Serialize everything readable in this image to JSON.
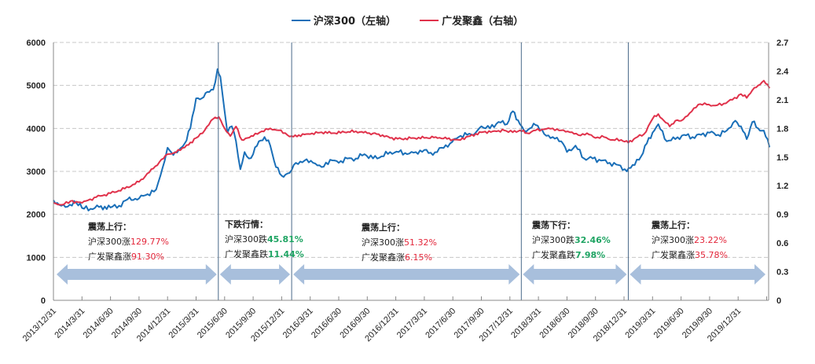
{
  "legend": {
    "items": [
      {
        "label": "沪深300（左轴）",
        "color": "#1a6fb8"
      },
      {
        "label": "广发聚鑫（右轴）",
        "color": "#e0324b"
      }
    ]
  },
  "colors": {
    "hs300": "#1a6fb8",
    "fund": "#e0324b",
    "arrow": "#a8bfdc",
    "divider": "#4a6a8a",
    "grid": "#c8c8c8",
    "up": "#e3263a",
    "down": "#1fa463"
  },
  "annotations": [
    {
      "title": "震荡上行：",
      "line1_prefix": "沪深300涨",
      "line1_value": "129.77%",
      "line1_dir": "up",
      "line2_prefix": "广发聚鑫涨",
      "line2_value": "91.30%",
      "line2_dir": "up"
    },
    {
      "title": "下跌行情：",
      "line1_prefix": "沪深300跌",
      "line1_value": "45.81%",
      "line1_dir": "down",
      "line2_prefix": "广发聚鑫跌",
      "line2_value": "11.44%",
      "line2_dir": "down"
    },
    {
      "title": "震荡上行：",
      "line1_prefix": "沪深300涨",
      "line1_value": "51.32%",
      "line1_dir": "up",
      "line2_prefix": "广发聚鑫涨",
      "line2_value": "6.15%",
      "line2_dir": "up"
    },
    {
      "title": "震荡下行：",
      "line1_prefix": "沪深300跌",
      "line1_value": "32.46%",
      "line1_dir": "down",
      "line2_prefix": "广发聚鑫跌",
      "line2_value": "7.98%",
      "line2_dir": "down"
    },
    {
      "title": "震荡上行：",
      "line1_prefix": "沪深300涨",
      "line1_value": "23.22%",
      "line1_dir": "up",
      "line2_prefix": "广发聚鑫涨",
      "line2_value": "35.78%",
      "line2_dir": "up"
    }
  ],
  "chart_data": {
    "type": "line",
    "title": "",
    "legend_position": "top",
    "grid": true,
    "x_tick_labels": [
      "2013/12/31",
      "2014/3/31",
      "2014/6/30",
      "2014/9/30",
      "2014/12/31",
      "2015/3/31",
      "2015/6/30",
      "2015/9/30",
      "2015/12/31",
      "2016/3/31",
      "2016/6/30",
      "2016/9/30",
      "2016/12/31",
      "2017/3/31",
      "2017/6/30",
      "2017/9/30",
      "2017/12/31",
      "2018/3/31",
      "2018/6/30",
      "2018/9/30",
      "2018/12/31",
      "2019/3/31",
      "2019/6/30",
      "2019/9/30",
      "2019/12/31"
    ],
    "y_left": {
      "label": "沪深300",
      "ticks": [
        0,
        1000,
        2000,
        3000,
        4000,
        5000,
        6000
      ],
      "range": [
        0,
        6000
      ]
    },
    "y_right": {
      "label": "广发聚鑫",
      "ticks": [
        "0",
        "0.3",
        "0.6",
        "0.9",
        "1.2",
        "1.5",
        "1.8",
        "2.1",
        "2.4",
        "2.7"
      ],
      "range": [
        0,
        2.7
      ]
    },
    "x_range_quarters": [
      0,
      25.1
    ],
    "period_dividers_quarters": [
      5.78,
      8.35,
      16.4,
      20.15
    ],
    "series": [
      {
        "name": "沪深300（左轴）",
        "axis": "left",
        "color": "#1a6fb8",
        "x_quarters": [
          0,
          0.2,
          0.5,
          0.8,
          1.0,
          1.3,
          1.6,
          2.0,
          2.3,
          2.6,
          3.0,
          3.3,
          3.6,
          3.9,
          4.0,
          4.2,
          4.4,
          4.6,
          4.8,
          5.0,
          5.2,
          5.4,
          5.6,
          5.75,
          5.85,
          6.0,
          6.1,
          6.25,
          6.4,
          6.55,
          6.7,
          6.85,
          7.0,
          7.2,
          7.4,
          7.6,
          7.8,
          8.0,
          8.2,
          8.35,
          8.5,
          8.8,
          9.1,
          9.4,
          9.7,
          10.0,
          10.3,
          10.6,
          10.9,
          11.2,
          11.5,
          11.8,
          12.1,
          12.4,
          12.7,
          13.0,
          13.3,
          13.6,
          13.9,
          14.2,
          14.5,
          14.8,
          15.0,
          15.3,
          15.6,
          15.9,
          16.1,
          16.35,
          16.5,
          16.7,
          16.9,
          17.2,
          17.5,
          17.8,
          18.0,
          18.3,
          18.6,
          18.9,
          19.2,
          19.5,
          19.8,
          20.1,
          20.3,
          20.6,
          20.8,
          21.0,
          21.2,
          21.5,
          21.8,
          22.1,
          22.4,
          22.7,
          23.0,
          23.3,
          23.6,
          23.9,
          24.1,
          24.3,
          24.5,
          24.7,
          24.9,
          25.1
        ],
        "values": [
          2330,
          2220,
          2180,
          2270,
          2150,
          2130,
          2170,
          2160,
          2200,
          2350,
          2370,
          2470,
          2580,
          3250,
          3550,
          3380,
          3500,
          3650,
          4000,
          4700,
          4700,
          4850,
          4900,
          5380,
          5200,
          4400,
          3900,
          4050,
          3700,
          3050,
          3450,
          3300,
          3400,
          3700,
          3800,
          3600,
          3100,
          2900,
          2950,
          3030,
          3200,
          3250,
          3200,
          3100,
          3270,
          3200,
          3300,
          3300,
          3400,
          3300,
          3350,
          3450,
          3450,
          3400,
          3450,
          3500,
          3380,
          3550,
          3650,
          3800,
          3850,
          3900,
          4050,
          4000,
          4150,
          4100,
          4400,
          4100,
          3950,
          4000,
          4080,
          3870,
          3800,
          3700,
          3450,
          3600,
          3300,
          3300,
          3250,
          3200,
          3150,
          3000,
          3150,
          3350,
          3650,
          3900,
          4100,
          3700,
          3750,
          3850,
          3800,
          3850,
          3900,
          3850,
          3950,
          4180,
          4050,
          3750,
          4150,
          4000,
          3950,
          3560
        ]
      },
      {
        "name": "广发聚鑫（右轴）",
        "axis": "right",
        "color": "#e0324b",
        "x_quarters": [
          0,
          0.3,
          0.6,
          1.0,
          1.5,
          2.0,
          2.5,
          3.0,
          3.5,
          4.0,
          4.3,
          4.6,
          5.0,
          5.3,
          5.6,
          5.8,
          6.0,
          6.2,
          6.4,
          6.6,
          6.8,
          7.0,
          7.3,
          7.6,
          7.9,
          8.2,
          8.35,
          8.6,
          9.0,
          9.4,
          9.8,
          10.2,
          10.6,
          11.0,
          11.4,
          11.8,
          12.2,
          12.6,
          13.0,
          13.4,
          13.8,
          14.2,
          14.6,
          15.0,
          15.4,
          15.8,
          16.1,
          16.35,
          16.6,
          16.9,
          17.2,
          17.5,
          17.8,
          18.1,
          18.4,
          18.7,
          19.0,
          19.3,
          19.6,
          19.9,
          20.15,
          20.4,
          20.7,
          21.0,
          21.2,
          21.4,
          21.6,
          21.8,
          22.0,
          22.3,
          22.6,
          22.9,
          23.2,
          23.5,
          23.8,
          24.1,
          24.3,
          24.5,
          24.7,
          24.9,
          25.1
        ],
        "values": [
          1.02,
          1.0,
          1.04,
          1.02,
          1.08,
          1.12,
          1.17,
          1.24,
          1.38,
          1.53,
          1.55,
          1.6,
          1.7,
          1.78,
          1.9,
          1.92,
          1.8,
          1.72,
          1.82,
          1.68,
          1.7,
          1.72,
          1.77,
          1.8,
          1.78,
          1.73,
          1.72,
          1.73,
          1.74,
          1.76,
          1.75,
          1.76,
          1.77,
          1.75,
          1.74,
          1.7,
          1.69,
          1.7,
          1.7,
          1.71,
          1.69,
          1.68,
          1.72,
          1.76,
          1.77,
          1.78,
          1.76,
          1.78,
          1.75,
          1.78,
          1.79,
          1.8,
          1.78,
          1.76,
          1.73,
          1.75,
          1.7,
          1.71,
          1.68,
          1.68,
          1.65,
          1.7,
          1.74,
          1.9,
          1.95,
          1.88,
          1.82,
          1.88,
          1.88,
          1.96,
          2.05,
          2.05,
          2.04,
          2.06,
          2.1,
          2.16,
          2.12,
          2.2,
          2.25,
          2.3,
          2.22
        ]
      }
    ]
  }
}
